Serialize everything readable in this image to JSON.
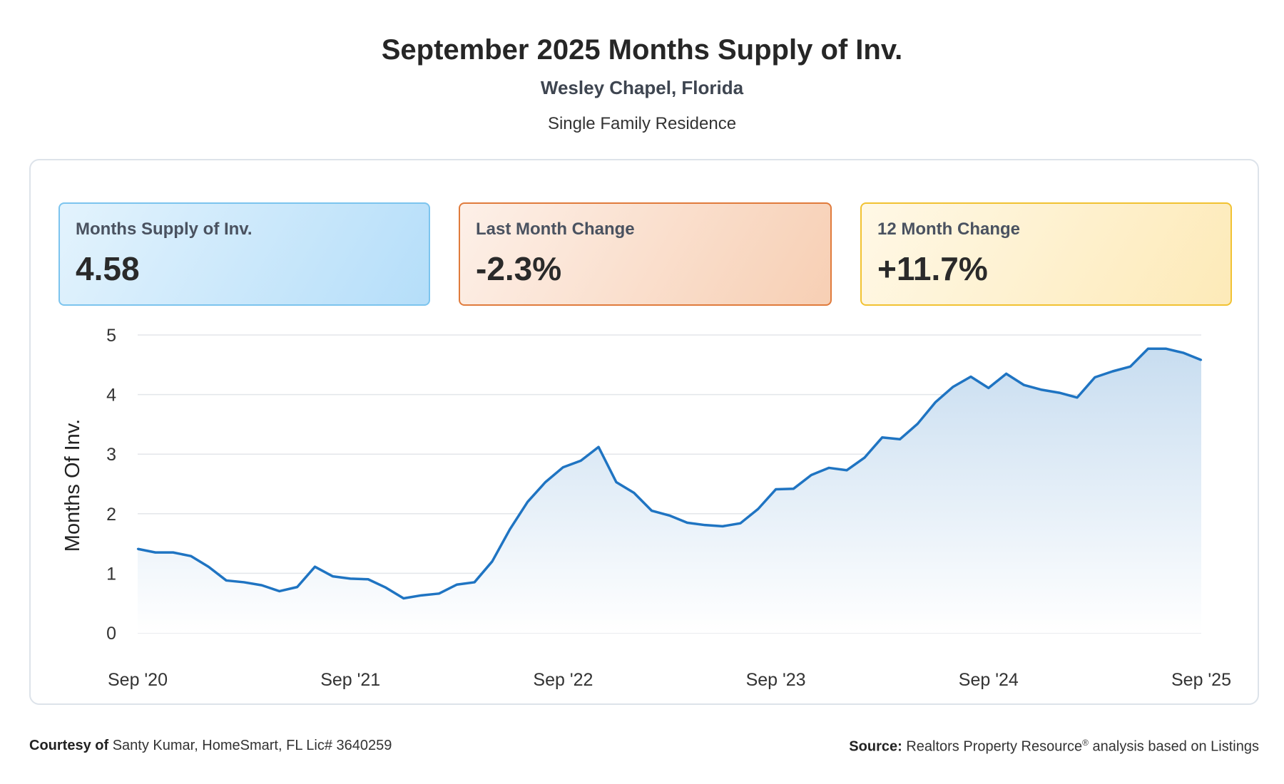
{
  "header": {
    "title": "September 2025 Months Supply of Inv.",
    "location": "Wesley Chapel, Florida",
    "property_type": "Single Family Residence"
  },
  "cards": {
    "supply": {
      "label": "Months Supply of Inv.",
      "value": "4.58"
    },
    "last_month": {
      "label": "Last Month Change",
      "value": "-2.3%"
    },
    "twelve_month": {
      "label": "12 Month Change",
      "value": "+11.7%"
    }
  },
  "colors": {
    "line": "#1f74c2",
    "area_top": "#c8ddf0",
    "grid": "#e3e6ea"
  },
  "chart_data": {
    "type": "area",
    "title": "",
    "xlabel": "",
    "ylabel": "Months Of Inv.",
    "ylim": [
      0,
      5
    ],
    "yticks": [
      0,
      1,
      2,
      3,
      4,
      5
    ],
    "xtick_labels": [
      "Sep '20",
      "Sep '21",
      "Sep '22",
      "Sep '23",
      "Sep '24",
      "Sep '25"
    ],
    "grid": true,
    "legend": "none",
    "series": [
      {
        "start": "Sep 2020",
        "frequency": "monthly",
        "values": [
          1.41,
          1.35,
          1.35,
          1.29,
          1.11,
          0.88,
          0.85,
          0.8,
          0.7,
          0.77,
          1.11,
          0.95,
          0.91,
          0.9,
          0.76,
          0.58,
          0.63,
          0.66,
          0.81,
          0.85,
          1.2,
          1.74,
          2.2,
          2.53,
          2.78,
          2.89,
          3.12,
          2.53,
          2.35,
          2.05,
          1.97,
          1.85,
          1.81,
          1.79,
          1.84,
          2.08,
          2.41,
          2.42,
          2.65,
          2.77,
          2.73,
          2.94,
          3.28,
          3.25,
          3.51,
          3.87,
          4.13,
          4.3,
          4.11,
          4.35,
          4.16,
          4.08,
          4.03,
          3.95,
          4.29,
          4.39,
          4.47,
          4.77,
          4.77,
          4.7,
          4.58
        ]
      }
    ]
  },
  "footer": {
    "courtesy_label": "Courtesy of",
    "courtesy_text": "Santy Kumar, HomeSmart, FL Lic# 3640259",
    "source_label": "Source:",
    "source_text_1": "Realtors Property Resource",
    "source_reg": "®",
    "source_text_2": "analysis based on Listings"
  }
}
